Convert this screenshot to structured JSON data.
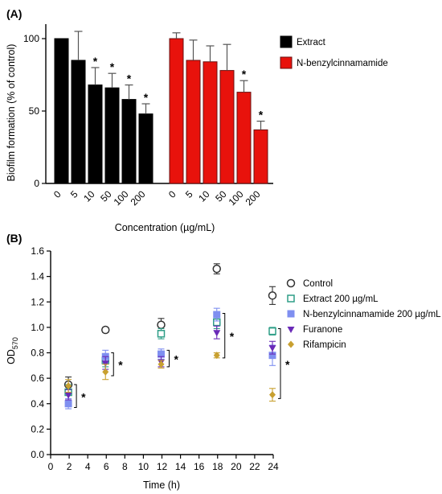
{
  "chart_data": [
    {
      "type": "bar",
      "panel_label": "(A)",
      "xlabel": "Concentration (µg/mL)",
      "ylabel": "Biofilm formation (% of control)",
      "ylim": [
        0,
        110
      ],
      "yticks": [
        "0",
        "50",
        "100"
      ],
      "legend_position": "right",
      "series": [
        {
          "name": "Extract",
          "color": "#000000",
          "categories": [
            "0",
            "5",
            "10",
            "50",
            "100",
            "200"
          ],
          "values": [
            100,
            85,
            68,
            66,
            58,
            48
          ],
          "errors": [
            0,
            20,
            12,
            10,
            10,
            7
          ],
          "significance": [
            "",
            "",
            "*",
            "*",
            "*",
            "*"
          ]
        },
        {
          "name": "N-benzylcinnamamide",
          "color": "#e8120c",
          "categories": [
            "0",
            "5",
            "10",
            "50",
            "100",
            "200"
          ],
          "values": [
            100,
            85,
            84,
            78,
            63,
            37
          ],
          "errors": [
            4,
            14,
            11,
            18,
            8,
            6
          ],
          "significance": [
            "",
            "",
            "",
            "",
            "*",
            "*"
          ]
        }
      ]
    },
    {
      "type": "scatter",
      "panel_label": "(B)",
      "xlabel": "Time (h)",
      "ylabel": "OD570",
      "ylabel_main": "OD",
      "ylabel_sub": "570",
      "xlim": [
        0,
        24
      ],
      "ylim": [
        0.0,
        1.6
      ],
      "xticks": [
        "0",
        "2",
        "4",
        "6",
        "8",
        "10",
        "12",
        "14",
        "16",
        "18",
        "20",
        "22",
        "24"
      ],
      "yticks": [
        "0.0",
        "0.2",
        "0.4",
        "0.6",
        "0.8",
        "1.0",
        "1.2",
        "1.4",
        "1.6"
      ],
      "legend_position": "top-right",
      "series": [
        {
          "name": "Control",
          "marker": "open-circle",
          "color": "#333333",
          "x": [
            2,
            6,
            12,
            18,
            24
          ],
          "y": [
            0.55,
            0.98,
            1.02,
            1.46,
            1.25
          ],
          "errors": [
            0.06,
            0.02,
            0.05,
            0.04,
            0.07
          ]
        },
        {
          "name": "Extract 200 µg/mL",
          "marker": "open-square",
          "color": "#2e9e87",
          "x": [
            2,
            6,
            12,
            18,
            24
          ],
          "y": [
            0.49,
            0.74,
            0.95,
            1.04,
            0.97
          ],
          "errors": [
            0.06,
            0.05,
            0.04,
            0.05,
            0.03
          ]
        },
        {
          "name": "N-benzylcinnamamide 200 µg/mL",
          "marker": "filled-square",
          "color": "#7f8ff0",
          "x": [
            2,
            6,
            12,
            18,
            24
          ],
          "y": [
            0.4,
            0.77,
            0.79,
            1.1,
            0.78
          ],
          "errors": [
            0.04,
            0.05,
            0.04,
            0.05,
            0.08
          ]
        },
        {
          "name": "Furanone",
          "marker": "filled-triangle-down",
          "color": "#6a2ab8",
          "x": [
            2,
            6,
            12,
            18,
            24
          ],
          "y": [
            0.47,
            0.72,
            0.73,
            0.96,
            0.84
          ],
          "errors": [
            0.04,
            0.05,
            0.04,
            0.05,
            0.05
          ]
        },
        {
          "name": "Rifampicin",
          "marker": "filled-diamond",
          "color": "#c8a030",
          "x": [
            2,
            6,
            12,
            18,
            24
          ],
          "y": [
            0.54,
            0.65,
            0.71,
            0.78,
            0.47
          ],
          "errors": [
            0.05,
            0.06,
            0.03,
            0.02,
            0.05
          ]
        }
      ],
      "significance_brackets": [
        {
          "x": 2,
          "y_low": 0.37,
          "y_high": 0.55,
          "label": "*"
        },
        {
          "x": 6,
          "y_low": 0.62,
          "y_high": 0.8,
          "label": "*"
        },
        {
          "x": 12,
          "y_low": 0.69,
          "y_high": 0.82,
          "label": "*"
        },
        {
          "x": 18,
          "y_low": 0.76,
          "y_high": 1.11,
          "label": "*"
        },
        {
          "x": 24,
          "y_low": 0.44,
          "y_high": 0.99,
          "label": "*"
        }
      ]
    }
  ]
}
